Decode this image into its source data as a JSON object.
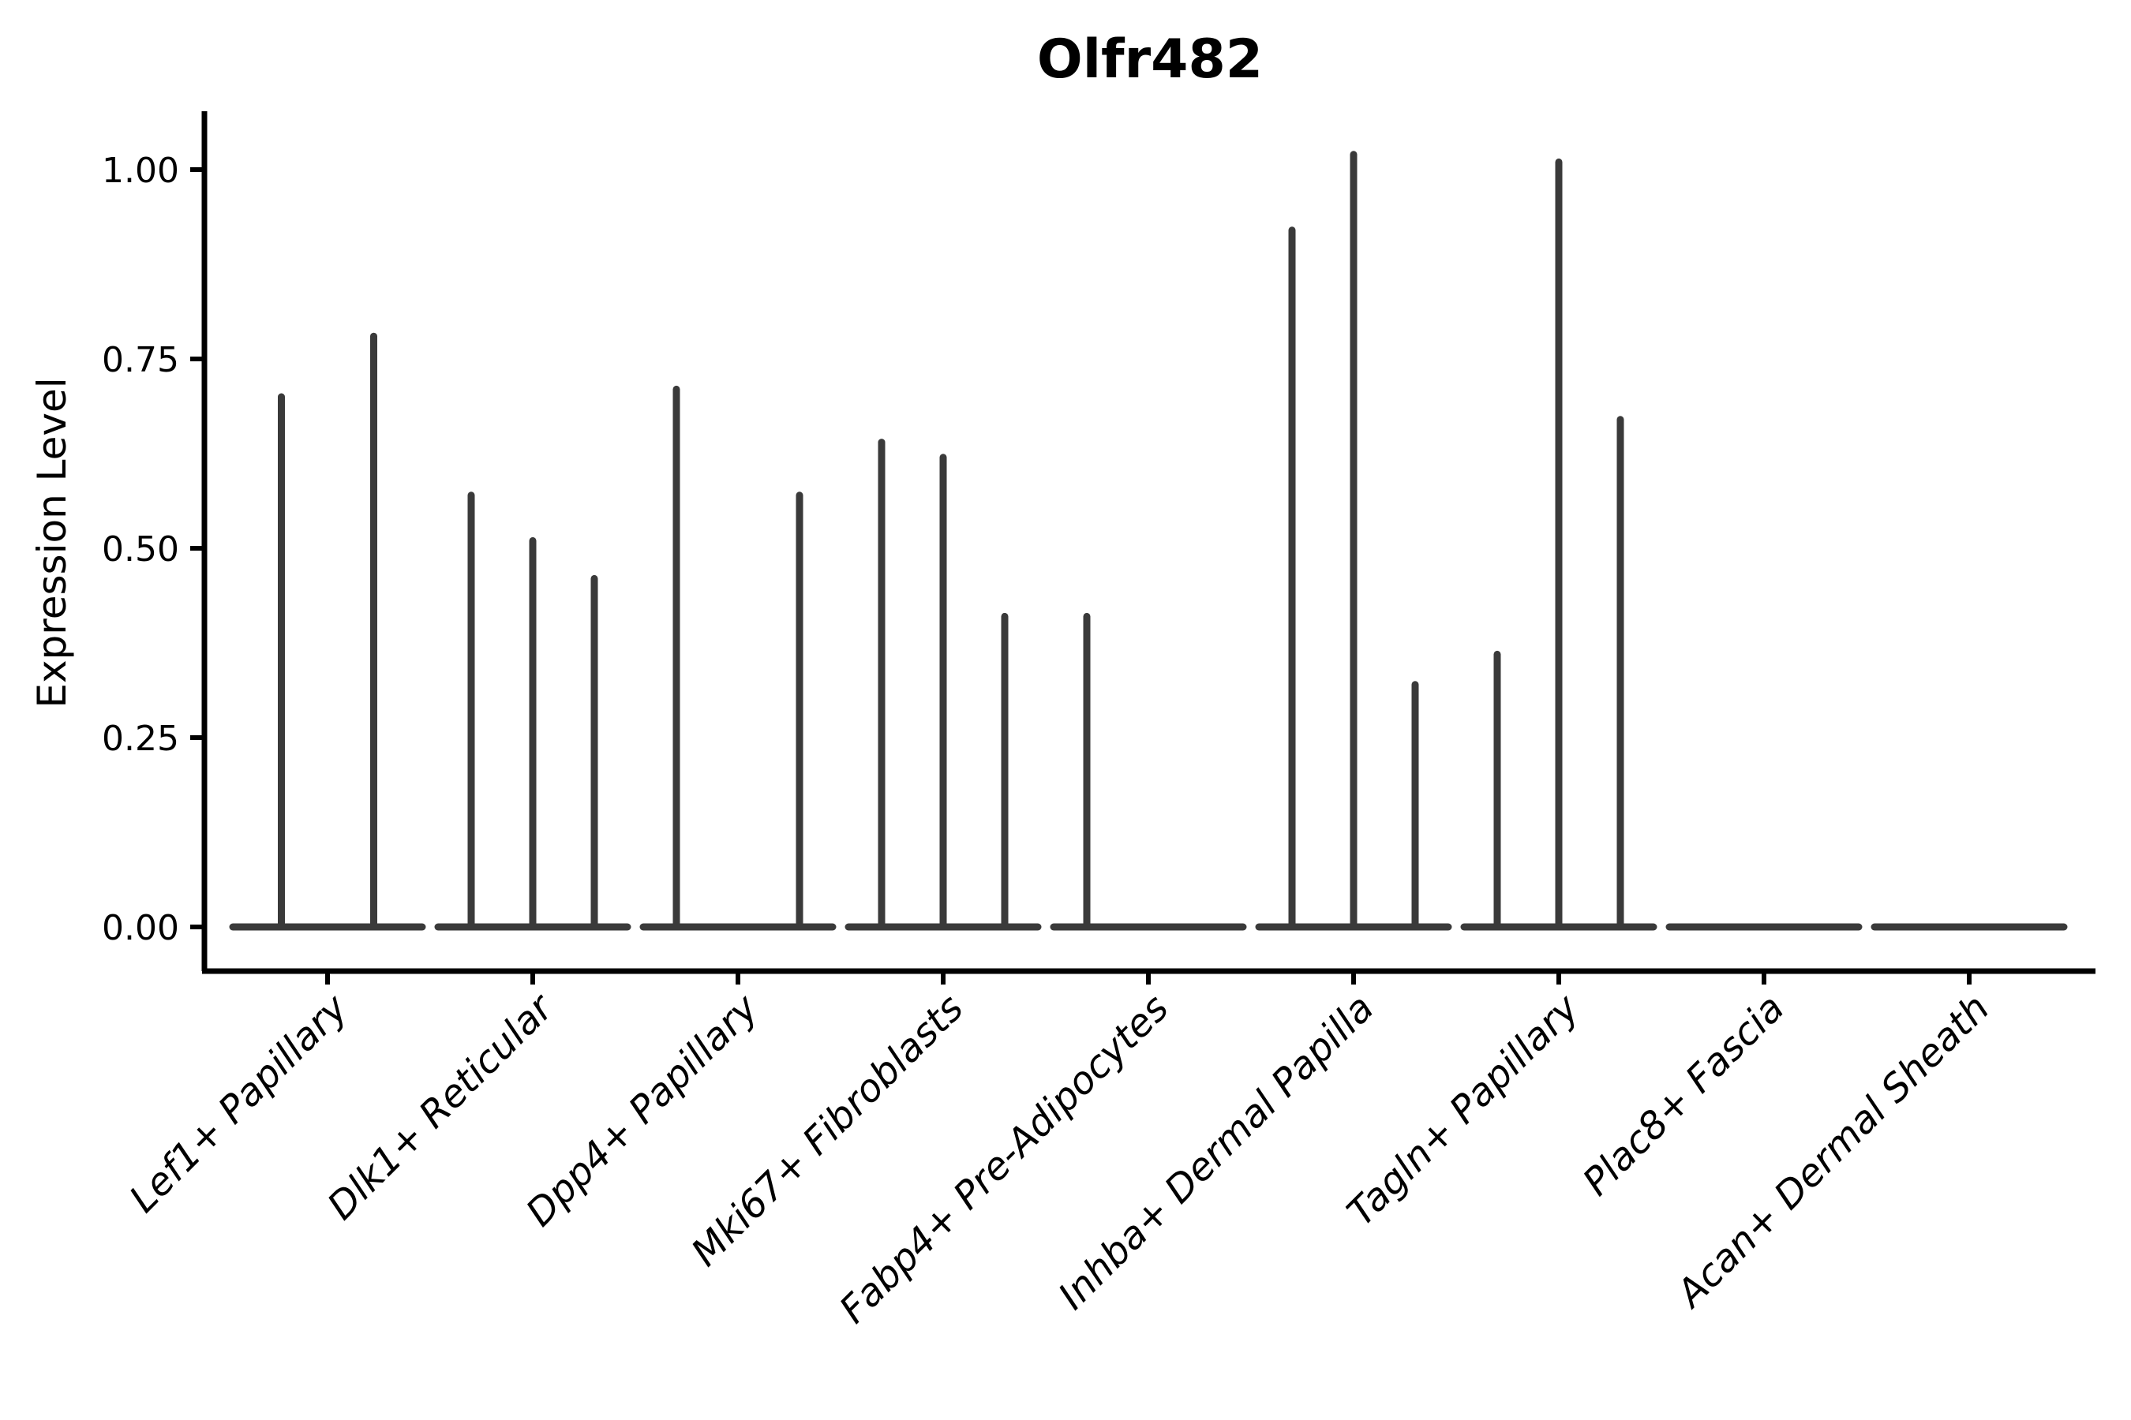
{
  "figure": {
    "title": "Olfr482",
    "y_axis_label": "Expression Level"
  },
  "chart_data": {
    "type": "violin",
    "title": "Olfr482",
    "subtitle": "",
    "xlabel": "",
    "ylabel": "Expression Level",
    "ylim": [
      -0.06,
      1.08
    ],
    "y_ticks": [
      0.0,
      0.25,
      0.5,
      0.75,
      1.0
    ],
    "y_tick_labels": [
      "0.00",
      "0.25",
      "0.50",
      "0.75",
      "1.00"
    ],
    "grid": false,
    "legend_position": "none",
    "categories": [
      "Lef1+ Papillary",
      "Dlk1+ Reticular",
      "Dpp4+ Papillary",
      "Mki67+ Fibroblasts",
      "Fabp4+ Pre-Adipocytes",
      "Inhba+ Dermal Papilla",
      "Tagln+ Papillary",
      "Plac8+ Fascia",
      "Acan+ Dermal Sheath"
    ],
    "groups": [
      {
        "category": "Lef1+ Papillary",
        "violins": [
          {
            "offset": -0.225,
            "peak": 0.7
          },
          {
            "offset": 0.225,
            "peak": 0.78
          }
        ]
      },
      {
        "category": "Dlk1+ Reticular",
        "violins": [
          {
            "offset": -0.3,
            "peak": 0.57
          },
          {
            "offset": 0.0,
            "peak": 0.51
          },
          {
            "offset": 0.3,
            "peak": 0.46
          }
        ]
      },
      {
        "category": "Dpp4+ Papillary",
        "violins": [
          {
            "offset": -0.3,
            "peak": 0.71
          },
          {
            "offset": 0.3,
            "peak": 0.57
          }
        ]
      },
      {
        "category": "Mki67+ Fibroblasts",
        "violins": [
          {
            "offset": -0.3,
            "peak": 0.64
          },
          {
            "offset": 0.0,
            "peak": 0.62
          },
          {
            "offset": 0.3,
            "peak": 0.41
          }
        ]
      },
      {
        "category": "Fabp4+ Pre-Adipocytes",
        "violins": [
          {
            "offset": -0.3,
            "peak": 0.41
          }
        ]
      },
      {
        "category": "Inhba+ Dermal Papilla",
        "violins": [
          {
            "offset": -0.3,
            "peak": 0.92
          },
          {
            "offset": 0.0,
            "peak": 1.02
          },
          {
            "offset": 0.3,
            "peak": 0.32
          }
        ]
      },
      {
        "category": "Tagln+ Papillary",
        "violins": [
          {
            "offset": -0.3,
            "peak": 0.36
          },
          {
            "offset": 0.0,
            "peak": 1.01
          },
          {
            "offset": 0.3,
            "peak": 0.67
          }
        ]
      },
      {
        "category": "Plac8+ Fascia",
        "violins": []
      },
      {
        "category": "Acan+ Dermal Sheath",
        "violins": []
      }
    ],
    "style": {
      "violin_line_color": "#3A3A3A",
      "axis_color": "#000000",
      "background": "#FFFFFF",
      "title_bold": true,
      "x_tick_label_rotation_deg": 45,
      "x_tick_labels_italic": true
    }
  }
}
